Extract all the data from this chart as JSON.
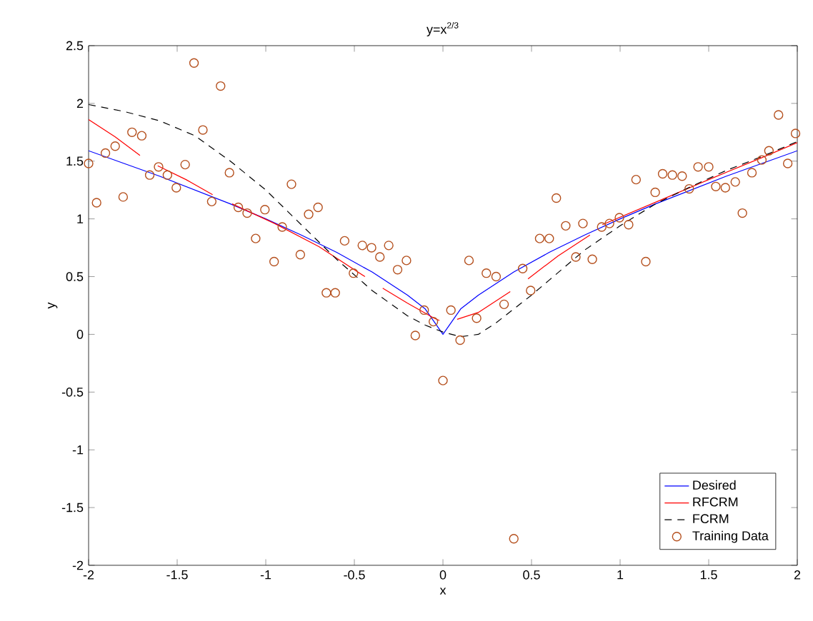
{
  "chart_data": {
    "type": "line",
    "title": "y=x$^{2/3}$",
    "xlabel": "x",
    "ylabel": "y",
    "xlim": [
      -2,
      2
    ],
    "ylim": [
      -2,
      2.5
    ],
    "xticks": [
      -2,
      -1.5,
      -1,
      -0.5,
      0,
      0.5,
      1,
      1.5,
      2
    ],
    "yticks": [
      -2,
      -1.5,
      -1,
      -0.5,
      0,
      0.5,
      1,
      1.5,
      2,
      2.5
    ],
    "grid": false,
    "legend": "bottom right",
    "series": [
      {
        "name": "Desired",
        "color": "#0000ff",
        "line_style": "solid",
        "x": [
          -2,
          -1.8,
          -1.6,
          -1.4,
          -1.2,
          -1,
          -0.8,
          -0.6,
          -0.4,
          -0.2,
          -0.1,
          0,
          0.1,
          0.2,
          0.4,
          0.6,
          0.8,
          1,
          1.2,
          1.4,
          1.6,
          1.8,
          2
        ],
        "values": [
          1.59,
          1.48,
          1.37,
          1.25,
          1.13,
          1.0,
          0.86,
          0.71,
          0.54,
          0.34,
          0.22,
          0,
          0.22,
          0.34,
          0.54,
          0.71,
          0.86,
          1.0,
          1.13,
          1.25,
          1.37,
          1.48,
          1.59
        ]
      },
      {
        "name": "RFCRM",
        "color": "#ff0000",
        "line_style": "solid",
        "x": [
          -2,
          -1.85,
          -1.71,
          -1.66,
          -1.61,
          -1.45,
          -1.3,
          -1.25,
          -1.19,
          -0.95,
          -0.7,
          -0.44,
          -0.39,
          -0.34,
          -0.2,
          -0.05,
          -0.02,
          0.03,
          0.08,
          0.2,
          0.38,
          0.43,
          0.48,
          0.65,
          0.83,
          0.86,
          0.9,
          1.24,
          1.5,
          1.8,
          2
        ],
        "values": [
          1.86,
          1.71,
          1.55,
          null,
          1.46,
          1.34,
          1.21,
          null,
          1.13,
          0.96,
          0.76,
          0.5,
          null,
          0.4,
          0.27,
          0.14,
          0.12,
          null,
          0.13,
          0.19,
          0.37,
          null,
          0.48,
          0.68,
          0.86,
          null,
          0.95,
          1.17,
          1.34,
          1.53,
          1.66
        ]
      },
      {
        "name": "FCRM",
        "color": "#000000",
        "line_style": "dashed",
        "x": [
          -2,
          -1.8,
          -1.6,
          -1.4,
          -1.2,
          -1,
          -0.8,
          -0.6,
          -0.4,
          -0.2,
          -0.1,
          0,
          0.1,
          0.2,
          0.3,
          0.4,
          0.5,
          0.6,
          0.8,
          1,
          1.2,
          1.4,
          1.6,
          1.8,
          2
        ],
        "values": [
          1.99,
          1.93,
          1.85,
          1.72,
          1.5,
          1.25,
          0.95,
          0.65,
          0.38,
          0.16,
          0.08,
          0.02,
          -0.02,
          0.0,
          0.1,
          0.22,
          0.34,
          0.47,
          0.73,
          0.94,
          1.13,
          1.28,
          1.42,
          1.54,
          1.67
        ]
      },
      {
        "name": "Training Data",
        "type": "scatter",
        "color": "#b5501e",
        "marker": "circle",
        "x": [
          -2.0,
          -1.955,
          -1.905,
          -1.85,
          -1.805,
          -1.755,
          -1.7,
          -1.655,
          -1.605,
          -1.555,
          -1.505,
          -1.455,
          -1.405,
          -1.355,
          -1.305,
          -1.255,
          -1.205,
          -1.155,
          -1.105,
          -1.057,
          -1.005,
          -0.953,
          -0.907,
          -0.855,
          -0.805,
          -0.758,
          -0.705,
          -0.658,
          -0.608,
          -0.555,
          -0.505,
          -0.455,
          -0.403,
          -0.356,
          -0.306,
          -0.256,
          -0.206,
          -0.156,
          -0.106,
          -0.054,
          0,
          0.045,
          0.097,
          0.147,
          0.19,
          0.245,
          0.3,
          0.345,
          0.4,
          0.45,
          0.495,
          0.546,
          0.6,
          0.64,
          0.693,
          0.75,
          0.79,
          0.843,
          0.896,
          0.94,
          0.996,
          1.048,
          1.09,
          1.145,
          1.198,
          1.24,
          1.295,
          1.35,
          1.39,
          1.44,
          1.5,
          1.54,
          1.594,
          1.65,
          1.69,
          1.744,
          1.8,
          1.84,
          1.894,
          1.946,
          1.99
        ],
        "values": [
          1.48,
          1.14,
          1.57,
          1.63,
          1.19,
          1.75,
          1.72,
          1.38,
          1.45,
          1.38,
          1.27,
          1.47,
          2.35,
          1.77,
          1.15,
          2.15,
          1.4,
          1.1,
          1.05,
          0.83,
          1.08,
          0.63,
          0.93,
          1.3,
          0.69,
          1.04,
          1.1,
          0.36,
          0.36,
          0.81,
          0.53,
          0.77,
          0.75,
          0.67,
          0.77,
          0.56,
          0.64,
          -0.01,
          0.21,
          0.11,
          -0.4,
          0.21,
          -0.05,
          0.64,
          0.14,
          0.53,
          0.5,
          0.26,
          -1.77,
          0.57,
          0.38,
          0.83,
          0.83,
          1.18,
          0.94,
          0.67,
          0.96,
          0.65,
          0.93,
          0.96,
          1.01,
          0.95,
          1.34,
          0.63,
          1.23,
          1.39,
          1.38,
          1.37,
          1.26,
          1.45,
          1.45,
          1.28,
          1.27,
          1.32,
          1.05,
          1.4,
          1.51,
          1.59,
          1.9,
          1.48,
          1.74
        ]
      }
    ]
  }
}
